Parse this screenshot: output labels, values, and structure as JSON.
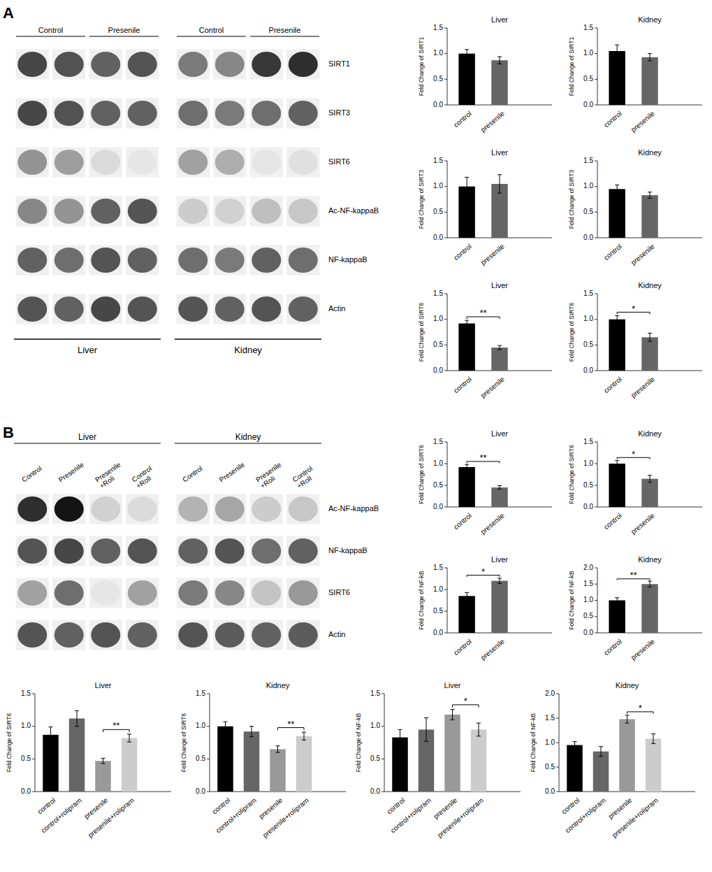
{
  "chart_data": [
    {
      "type": "blot",
      "title": "A",
      "categories": [
        "SIRT1",
        "SIRT3",
        "SIRT6",
        "Ac-NF-kappaB",
        "NF-kappaB",
        "Actin"
      ],
      "series": [
        {
          "name": "Liver",
          "lane_labels": [
            "Control",
            "Presenile"
          ],
          "cells": [
            [
              0.72,
              0.68,
              0.62,
              0.67
            ],
            [
              0.72,
              0.68,
              0.62,
              0.62
            ],
            [
              0.42,
              0.38,
              0.14,
              0.1
            ],
            [
              0.47,
              0.42,
              0.62,
              0.67
            ],
            [
              0.62,
              0.57,
              0.67,
              0.62
            ],
            [
              0.67,
              0.62,
              0.72,
              0.67
            ]
          ]
        },
        {
          "name": "Kidney",
          "lane_labels": [
            "Control",
            "Presenile"
          ],
          "cells": [
            [
              0.52,
              0.47,
              0.78,
              0.82
            ],
            [
              0.57,
              0.52,
              0.57,
              0.62
            ],
            [
              0.37,
              0.32,
              0.1,
              0.12
            ],
            [
              0.2,
              0.18,
              0.25,
              0.22
            ],
            [
              0.57,
              0.52,
              0.62,
              0.57
            ],
            [
              0.67,
              0.62,
              0.67,
              0.62
            ]
          ]
        }
      ]
    },
    {
      "type": "bar",
      "title": "Liver",
      "y_label": "Fold Change of SIRT1",
      "categories": [
        "control",
        "presenile"
      ],
      "values": [
        1.0,
        0.87
      ],
      "errors": [
        0.08,
        0.07
      ],
      "colors": [
        "#000000",
        "#666666"
      ],
      "ylim": [
        0,
        1.5
      ],
      "yticks": [
        {
          "value": 0,
          "label": "0.0"
        },
        0.5,
        {
          "value": 1,
          "label": "1.0"
        },
        1.5
      ]
    },
    {
      "type": "bar",
      "title": "Kidney",
      "y_label": "Fold Change of SIRT1",
      "categories": [
        "control",
        "presenile"
      ],
      "values": [
        1.05,
        0.93
      ],
      "errors": [
        0.12,
        0.07
      ],
      "colors": [
        "#000000",
        "#666666"
      ],
      "ylim": [
        0,
        1.5
      ],
      "yticks": [
        {
          "value": 0,
          "label": "0.0"
        },
        0.5,
        {
          "value": 1,
          "label": "1.0"
        },
        1.5
      ]
    },
    {
      "type": "bar",
      "title": "Liver",
      "y_label": "Fold Change of SIRT3",
      "categories": [
        "control",
        "presenile"
      ],
      "values": [
        1.0,
        1.05
      ],
      "errors": [
        0.18,
        0.18
      ],
      "colors": [
        "#000000",
        "#666666"
      ],
      "ylim": [
        0,
        1.5
      ],
      "yticks": [
        {
          "value": 0,
          "label": "0.0"
        },
        0.5,
        {
          "value": 1,
          "label": "1.0"
        },
        1.5
      ]
    },
    {
      "type": "bar",
      "title": "Kidney",
      "y_label": "Fold Change of SIRT3",
      "categories": [
        "control",
        "presenile"
      ],
      "values": [
        0.95,
        0.83
      ],
      "errors": [
        0.08,
        0.06
      ],
      "colors": [
        "#000000",
        "#666666"
      ],
      "ylim": [
        0,
        1.5
      ],
      "yticks": [
        {
          "value": 0,
          "label": "0.0"
        },
        0.5,
        {
          "value": 1,
          "label": "1.0"
        },
        1.5
      ]
    },
    {
      "type": "bar",
      "title": "Liver",
      "y_label": "Fold Change of SIRT6",
      "categories": [
        "control",
        "presenile"
      ],
      "values": [
        0.92,
        0.45
      ],
      "errors": [
        0.06,
        0.04
      ],
      "colors": [
        "#000000",
        "#666666"
      ],
      "ylim": [
        0,
        1.5
      ],
      "yticks": [
        {
          "value": 0,
          "label": "0.0"
        },
        0.5,
        {
          "value": 1,
          "label": "1.0"
        },
        1.5
      ],
      "annotations": [
        {
          "text": "**",
          "between": [
            "control",
            "presenile"
          ]
        }
      ]
    },
    {
      "type": "bar",
      "title": "Kidney",
      "y_label": "Fold Change of SIRT6",
      "categories": [
        "control",
        "presenile"
      ],
      "values": [
        1.0,
        0.65
      ],
      "errors": [
        0.07,
        0.08
      ],
      "colors": [
        "#000000",
        "#666666"
      ],
      "ylim": [
        0,
        1.5
      ],
      "yticks": [
        {
          "value": 0,
          "label": "0.0"
        },
        0.5,
        {
          "value": 1,
          "label": "1.0"
        },
        1.5
      ],
      "annotations": [
        {
          "text": "*",
          "between": [
            "control",
            "presenile"
          ]
        }
      ]
    },
    {
      "type": "blot",
      "title": "B",
      "categories": [
        "Ac-NF-kappaB",
        "NF-kappaB",
        "SIRT6",
        "Actin"
      ],
      "series": [
        {
          "name": "Liver",
          "lane_labels": [
            "Control",
            "Presenile",
            "Presenile\n+Roli",
            "Control\n+Roll"
          ],
          "cells": [
            [
              0.82,
              0.92,
              0.18,
              0.14
            ],
            [
              0.67,
              0.72,
              0.62,
              0.67
            ],
            [
              0.37,
              0.57,
              0.1,
              0.37
            ],
            [
              0.67,
              0.62,
              0.67,
              0.62
            ]
          ]
        },
        {
          "name": "Kidney",
          "lane_labels": [
            "Control",
            "Presenile",
            "Presenile\n+Roli",
            "Control\n+Roll"
          ],
          "cells": [
            [
              0.3,
              0.35,
              0.2,
              0.22
            ],
            [
              0.62,
              0.67,
              0.57,
              0.62
            ],
            [
              0.52,
              0.47,
              0.23,
              0.4
            ],
            [
              0.67,
              0.64,
              0.62,
              0.64
            ]
          ]
        }
      ]
    },
    {
      "type": "bar",
      "title": "Liver",
      "y_label": "Fold Change of SIRT6",
      "categories": [
        "control",
        "presenile"
      ],
      "values": [
        0.92,
        0.45
      ],
      "errors": [
        0.06,
        0.04
      ],
      "colors": [
        "#000000",
        "#666666"
      ],
      "ylim": [
        0,
        1.5
      ],
      "yticks": [
        {
          "value": 0,
          "label": "0.0"
        },
        0.5,
        {
          "value": 1,
          "label": "1.0"
        },
        1.5
      ],
      "annotations": [
        {
          "text": "**",
          "between": [
            "control",
            "presenile"
          ]
        }
      ]
    },
    {
      "type": "bar",
      "title": "Kidney",
      "y_label": "Fold Change of SIRT6",
      "categories": [
        "control",
        "presenile"
      ],
      "values": [
        1.0,
        0.65
      ],
      "errors": [
        0.07,
        0.08
      ],
      "colors": [
        "#000000",
        "#666666"
      ],
      "ylim": [
        0,
        1.5
      ],
      "yticks": [
        {
          "value": 0,
          "label": "0.0"
        },
        0.5,
        {
          "value": 1,
          "label": "1.0"
        },
        1.5
      ],
      "annotations": [
        {
          "text": "*",
          "between": [
            "control",
            "presenile"
          ]
        }
      ]
    },
    {
      "type": "bar",
      "title": "Liver",
      "y_label": "Fold Change of NF-kB",
      "categories": [
        "control",
        "presenile"
      ],
      "values": [
        0.85,
        1.2
      ],
      "errors": [
        0.08,
        0.06
      ],
      "colors": [
        "#000000",
        "#666666"
      ],
      "ylim": [
        0,
        1.5
      ],
      "yticks": [
        {
          "value": 0,
          "label": "0.0"
        },
        0.5,
        {
          "value": 1,
          "label": "1.0"
        },
        1.5
      ],
      "annotations": [
        {
          "text": "*",
          "between": [
            "control",
            "presenile"
          ]
        }
      ]
    },
    {
      "type": "bar",
      "title": "Kidney",
      "y_label": "Fold Change of NF-kB",
      "categories": [
        "control",
        "presenile"
      ],
      "values": [
        1.0,
        1.5
      ],
      "errors": [
        0.08,
        0.09
      ],
      "colors": [
        "#000000",
        "#666666"
      ],
      "ylim": [
        0,
        2.0
      ],
      "yticks": [
        {
          "value": 0,
          "label": "0.0"
        },
        0.5,
        {
          "value": 1,
          "label": "1.0"
        },
        1.5,
        {
          "value": 2,
          "label": "2.0"
        }
      ],
      "annotations": [
        {
          "text": "**",
          "between": [
            "control",
            "presenile"
          ]
        }
      ]
    },
    {
      "type": "bar",
      "title": "Liver",
      "y_label": "Fold Change of SIRT6",
      "categories": [
        "control",
        "control+rolipram",
        "presenile",
        "presenile+rolipram"
      ],
      "values": [
        0.87,
        1.12,
        0.47,
        0.82
      ],
      "errors": [
        0.12,
        0.12,
        0.04,
        0.06
      ],
      "colors": [
        "#000000",
        "#666666",
        "#999999",
        "#cccccc"
      ],
      "ylim": [
        0,
        1.5
      ],
      "yticks": [
        {
          "value": 0,
          "label": "0.0"
        },
        0.5,
        {
          "value": 1,
          "label": "1.0"
        },
        1.5
      ],
      "annotations": [
        {
          "text": "**",
          "between": [
            "presenile",
            "presenile+rolipram"
          ]
        }
      ]
    },
    {
      "type": "bar",
      "title": "Kidney",
      "y_label": "Fold Change of SIRT6",
      "categories": [
        "control",
        "control+rolipram",
        "presenile",
        "presenile+rolipram"
      ],
      "values": [
        1.0,
        0.92,
        0.65,
        0.85
      ],
      "errors": [
        0.07,
        0.08,
        0.05,
        0.06
      ],
      "colors": [
        "#000000",
        "#666666",
        "#999999",
        "#cccccc"
      ],
      "ylim": [
        0,
        1.5
      ],
      "yticks": [
        {
          "value": 0,
          "label": "0.0"
        },
        0.5,
        {
          "value": 1,
          "label": "1.0"
        },
        1.5
      ],
      "annotations": [
        {
          "text": "**",
          "between": [
            "presenile",
            "presenile+rolipram"
          ]
        }
      ]
    },
    {
      "type": "bar",
      "title": "Liver",
      "y_label": "Fold Change of NF-kB",
      "categories": [
        "control",
        "control+rolipram",
        "presenile",
        "presenile+rolipram"
      ],
      "values": [
        0.83,
        0.95,
        1.18,
        0.95
      ],
      "errors": [
        0.12,
        0.18,
        0.08,
        0.1
      ],
      "colors": [
        "#000000",
        "#666666",
        "#999999",
        "#cccccc"
      ],
      "ylim": [
        0,
        1.5
      ],
      "yticks": [
        {
          "value": 0,
          "label": "0.0"
        },
        0.5,
        {
          "value": 1,
          "label": "1.0"
        },
        1.5
      ],
      "annotations": [
        {
          "text": "*",
          "between": [
            "presenile",
            "presenile+rolipram"
          ]
        }
      ]
    },
    {
      "type": "bar",
      "title": "Kidney",
      "y_label": "Fold Change of NF-kB",
      "categories": [
        "control",
        "control+rolipram",
        "presenile",
        "presenile+rolipram"
      ],
      "values": [
        0.95,
        0.82,
        1.48,
        1.08
      ],
      "errors": [
        0.07,
        0.1,
        0.08,
        0.1
      ],
      "colors": [
        "#000000",
        "#666666",
        "#999999",
        "#cccccc"
      ],
      "ylim": [
        0,
        2.0
      ],
      "yticks": [
        {
          "value": 0,
          "label": "0.0"
        },
        0.5,
        {
          "value": 1,
          "label": "1.0"
        },
        1.5,
        {
          "value": 2,
          "label": "2.0"
        }
      ],
      "annotations": [
        {
          "text": "*",
          "between": [
            "presenile",
            "presenile+rolipram"
          ]
        }
      ]
    }
  ]
}
